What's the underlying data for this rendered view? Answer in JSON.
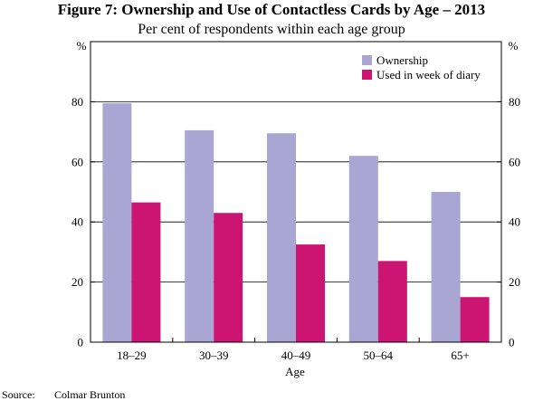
{
  "chart_data": {
    "type": "bar",
    "title": "Figure 7: Ownership and Use of Contactless Cards by Age – 2013",
    "subtitle": "Per cent of respondents within each age group",
    "xlabel": "Age",
    "ylabel_left": "%",
    "ylabel_right": "%",
    "ylim": [
      0,
      100
    ],
    "yticks": [
      0,
      20,
      40,
      60,
      80
    ],
    "categories": [
      "18–29",
      "30–39",
      "40–49",
      "50–64",
      "65+"
    ],
    "series": [
      {
        "name": "Ownership",
        "color": "#a9a6d4",
        "values": [
          79.5,
          70.5,
          69.5,
          62,
          50
        ]
      },
      {
        "name": "Used in week of diary",
        "color": "#cc1473",
        "values": [
          46.5,
          43,
          32.5,
          27,
          15
        ]
      }
    ],
    "legend_position": "top-right",
    "source_label": "Source:",
    "source_text": "Colmar Brunton"
  }
}
